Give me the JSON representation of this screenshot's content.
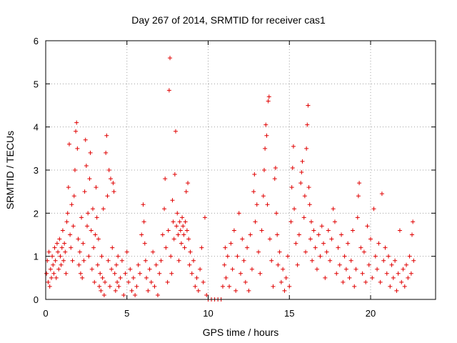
{
  "chart_data": {
    "type": "scatter",
    "title": "Day 267 of 2014, SRMTID for receiver cas1",
    "xlabel": "GPS time / hours",
    "ylabel": "SRMTID / TECUs",
    "xlim": [
      0,
      24
    ],
    "ylim": [
      0,
      6
    ],
    "xticks": [
      0,
      5,
      10,
      15,
      20
    ],
    "yticks": [
      0,
      1,
      2,
      3,
      4,
      5,
      6
    ],
    "xtick_labels": [
      "0",
      "5",
      "10",
      "15",
      "20"
    ],
    "ytick_labels": [
      "0",
      "1",
      "2",
      "3",
      "4",
      "5",
      "6"
    ],
    "grid": true,
    "marker": "+",
    "color": "#e00000",
    "series": [
      {
        "name": "SRMTID",
        "points": [
          [
            0.05,
            0.6
          ],
          [
            0.1,
            0.9
          ],
          [
            0.15,
            0.4
          ],
          [
            0.2,
            1.1
          ],
          [
            0.25,
            0.3
          ],
          [
            0.3,
            0.7
          ],
          [
            0.35,
            0.5
          ],
          [
            0.4,
            1.0
          ],
          [
            0.45,
            0.8
          ],
          [
            0.5,
            0.6
          ],
          [
            0.55,
            1.2
          ],
          [
            0.6,
            0.9
          ],
          [
            0.65,
            0.5
          ],
          [
            0.7,
            1.3
          ],
          [
            0.75,
            1.1
          ],
          [
            0.8,
            0.7
          ],
          [
            0.85,
            1.4
          ],
          [
            0.9,
            1.0
          ],
          [
            0.95,
            0.8
          ],
          [
            1.0,
            1.2
          ],
          [
            1.05,
            1.6
          ],
          [
            1.1,
            0.9
          ],
          [
            1.15,
            1.3
          ],
          [
            1.2,
            1.1
          ],
          [
            1.25,
            0.6
          ],
          [
            1.3,
            1.8
          ],
          [
            1.35,
            2.0
          ],
          [
            1.4,
            2.6
          ],
          [
            1.45,
            3.6
          ],
          [
            1.5,
            1.5
          ],
          [
            1.55,
            1.2
          ],
          [
            1.6,
            2.2
          ],
          [
            1.65,
            0.9
          ],
          [
            1.7,
            1.7
          ],
          [
            1.75,
            2.4
          ],
          [
            1.8,
            3.0
          ],
          [
            1.85,
            3.9
          ],
          [
            1.9,
            4.1
          ],
          [
            1.95,
            3.5
          ],
          [
            2.0,
            1.4
          ],
          [
            2.05,
            0.8
          ],
          [
            2.1,
            1.1
          ],
          [
            2.15,
            0.6
          ],
          [
            2.2,
            1.9
          ],
          [
            2.25,
            0.5
          ],
          [
            2.3,
            1.3
          ],
          [
            2.35,
            0.9
          ],
          [
            2.4,
            2.5
          ],
          [
            2.45,
            3.7
          ],
          [
            2.5,
            3.1
          ],
          [
            2.55,
            1.7
          ],
          [
            2.6,
            2.0
          ],
          [
            2.65,
            1.0
          ],
          [
            2.7,
            2.8
          ],
          [
            2.75,
            3.4
          ],
          [
            2.8,
            1.6
          ],
          [
            2.85,
            0.7
          ],
          [
            2.9,
            2.1
          ],
          [
            2.95,
            1.2
          ],
          [
            3.0,
            0.4
          ],
          [
            3.05,
            1.5
          ],
          [
            3.1,
            2.6
          ],
          [
            3.15,
            1.9
          ],
          [
            3.2,
            0.8
          ],
          [
            3.25,
            1.4
          ],
          [
            3.3,
            0.3
          ],
          [
            3.35,
            0.6
          ],
          [
            3.4,
            0.2
          ],
          [
            3.45,
            1.0
          ],
          [
            3.5,
            0.5
          ],
          [
            3.55,
            2.1
          ],
          [
            3.6,
            0.1
          ],
          [
            3.65,
            0.4
          ],
          [
            3.7,
            3.4
          ],
          [
            3.75,
            3.8
          ],
          [
            3.8,
            2.4
          ],
          [
            3.85,
            0.9
          ],
          [
            3.9,
            3.0
          ],
          [
            3.95,
            0.3
          ],
          [
            4.0,
            2.8
          ],
          [
            4.05,
            0.7
          ],
          [
            4.1,
            1.2
          ],
          [
            4.15,
            2.7
          ],
          [
            4.2,
            2.5
          ],
          [
            4.25,
            0.6
          ],
          [
            4.3,
            0.2
          ],
          [
            4.35,
            0.8
          ],
          [
            4.4,
            0.4
          ],
          [
            4.45,
            1.0
          ],
          [
            4.5,
            0.3
          ],
          [
            4.6,
            0.5
          ],
          [
            4.7,
            0.9
          ],
          [
            4.8,
            0.1
          ],
          [
            4.9,
            0.6
          ],
          [
            5.0,
            1.1
          ],
          [
            5.1,
            0.4
          ],
          [
            5.2,
            0.7
          ],
          [
            5.3,
            0.2
          ],
          [
            5.4,
            0.5
          ],
          [
            5.5,
            0.1
          ],
          [
            5.6,
            0.3
          ],
          [
            5.7,
            0.8
          ],
          [
            5.8,
            0.6
          ],
          [
            5.9,
            1.5
          ],
          [
            6.0,
            2.2
          ],
          [
            6.05,
            1.8
          ],
          [
            6.1,
            1.3
          ],
          [
            6.15,
            0.9
          ],
          [
            6.2,
            0.5
          ],
          [
            6.3,
            0.2
          ],
          [
            6.4,
            0.7
          ],
          [
            6.5,
            0.4
          ],
          [
            6.6,
            1.1
          ],
          [
            6.7,
            0.3
          ],
          [
            6.8,
            0.8
          ],
          [
            6.9,
            0.1
          ],
          [
            7.0,
            0.6
          ],
          [
            7.1,
            0.9
          ],
          [
            7.2,
            1.5
          ],
          [
            7.3,
            2.1
          ],
          [
            7.35,
            2.8
          ],
          [
            7.4,
            1.2
          ],
          [
            7.5,
            0.4
          ],
          [
            7.55,
            1.6
          ],
          [
            7.6,
            4.85
          ],
          [
            7.65,
            5.6
          ],
          [
            7.7,
            1.0
          ],
          [
            7.75,
            0.6
          ],
          [
            7.8,
            2.3
          ],
          [
            7.85,
            1.8
          ],
          [
            7.9,
            1.4
          ],
          [
            7.95,
            2.9
          ],
          [
            8.0,
            3.9
          ],
          [
            8.05,
            1.7
          ],
          [
            8.1,
            2.0
          ],
          [
            8.15,
            1.5
          ],
          [
            8.2,
            0.9
          ],
          [
            8.25,
            1.8
          ],
          [
            8.3,
            1.6
          ],
          [
            8.35,
            1.3
          ],
          [
            8.4,
            1.9
          ],
          [
            8.45,
            1.7
          ],
          [
            8.5,
            1.5
          ],
          [
            8.55,
            1.2
          ],
          [
            8.6,
            1.8
          ],
          [
            8.65,
            2.5
          ],
          [
            8.7,
            1.6
          ],
          [
            8.75,
            2.7
          ],
          [
            8.8,
            1.4
          ],
          [
            8.85,
            0.8
          ],
          [
            8.9,
            1.1
          ],
          [
            9.0,
            0.6
          ],
          [
            9.1,
            0.9
          ],
          [
            9.2,
            0.3
          ],
          [
            9.3,
            0.5
          ],
          [
            9.4,
            0.2
          ],
          [
            9.5,
            0.7
          ],
          [
            9.6,
            1.2
          ],
          [
            9.7,
            0.4
          ],
          [
            9.8,
            1.9
          ],
          [
            9.9,
            0.1
          ],
          [
            10.0,
            0.0
          ],
          [
            10.2,
            0.0
          ],
          [
            10.4,
            0.0
          ],
          [
            10.6,
            0.0
          ],
          [
            10.8,
            0.0
          ],
          [
            10.9,
            0.3
          ],
          [
            11.0,
            0.8
          ],
          [
            11.05,
            1.2
          ],
          [
            11.1,
            0.5
          ],
          [
            11.2,
            1.0
          ],
          [
            11.3,
            0.3
          ],
          [
            11.4,
            1.3
          ],
          [
            11.5,
            0.7
          ],
          [
            11.6,
            1.6
          ],
          [
            11.7,
            0.2
          ],
          [
            11.8,
            1.0
          ],
          [
            11.9,
            2.0
          ],
          [
            12.0,
            0.6
          ],
          [
            12.1,
            1.4
          ],
          [
            12.2,
            0.9
          ],
          [
            12.3,
            0.4
          ],
          [
            12.4,
            1.2
          ],
          [
            12.5,
            0.2
          ],
          [
            12.6,
            1.5
          ],
          [
            12.7,
            0.7
          ],
          [
            12.8,
            2.5
          ],
          [
            12.85,
            2.9
          ],
          [
            12.9,
            1.8
          ],
          [
            13.0,
            2.2
          ],
          [
            13.1,
            1.1
          ],
          [
            13.2,
            0.6
          ],
          [
            13.3,
            1.6
          ],
          [
            13.4,
            2.4
          ],
          [
            13.45,
            3.0
          ],
          [
            13.5,
            3.5
          ],
          [
            13.55,
            4.05
          ],
          [
            13.6,
            3.8
          ],
          [
            13.65,
            2.2
          ],
          [
            13.7,
            4.6
          ],
          [
            13.75,
            4.7
          ],
          [
            13.8,
            1.4
          ],
          [
            13.9,
            0.9
          ],
          [
            14.0,
            0.3
          ],
          [
            14.1,
            2.8
          ],
          [
            14.15,
            3.05
          ],
          [
            14.2,
            2.0
          ],
          [
            14.25,
            1.5
          ],
          [
            14.3,
            0.8
          ],
          [
            14.4,
            1.1
          ],
          [
            14.5,
            0.4
          ],
          [
            14.6,
            0.7
          ],
          [
            14.7,
            0.2
          ],
          [
            14.8,
            0.5
          ],
          [
            14.9,
            1.0
          ],
          [
            15.0,
            0.3
          ],
          [
            15.1,
            1.8
          ],
          [
            15.15,
            2.6
          ],
          [
            15.2,
            3.05
          ],
          [
            15.25,
            3.55
          ],
          [
            15.3,
            2.1
          ],
          [
            15.4,
            1.3
          ],
          [
            15.5,
            0.8
          ],
          [
            15.6,
            1.5
          ],
          [
            15.7,
            2.7
          ],
          [
            15.75,
            2.95
          ],
          [
            15.8,
            3.2
          ],
          [
            15.9,
            1.9
          ],
          [
            15.95,
            2.4
          ],
          [
            16.0,
            1.1
          ],
          [
            16.05,
            3.5
          ],
          [
            16.1,
            4.05
          ],
          [
            16.15,
            4.5
          ],
          [
            16.2,
            2.6
          ],
          [
            16.25,
            2.2
          ],
          [
            16.3,
            1.4
          ],
          [
            16.35,
            1.8
          ],
          [
            16.4,
            0.9
          ],
          [
            16.5,
            1.6
          ],
          [
            16.6,
            1.2
          ],
          [
            16.7,
            0.7
          ],
          [
            16.8,
            1.5
          ],
          [
            16.9,
            1.0
          ],
          [
            17.0,
            1.7
          ],
          [
            17.1,
            1.3
          ],
          [
            17.2,
            0.5
          ],
          [
            17.3,
            1.1
          ],
          [
            17.4,
            1.6
          ],
          [
            17.5,
            0.9
          ],
          [
            17.6,
            1.4
          ],
          [
            17.7,
            2.1
          ],
          [
            17.8,
            1.8
          ],
          [
            17.9,
            0.6
          ],
          [
            18.0,
            1.2
          ],
          [
            18.1,
            0.8
          ],
          [
            18.2,
            1.5
          ],
          [
            18.3,
            0.4
          ],
          [
            18.4,
            1.0
          ],
          [
            18.5,
            0.7
          ],
          [
            18.6,
            1.3
          ],
          [
            18.7,
            0.5
          ],
          [
            18.8,
            0.9
          ],
          [
            18.9,
            1.6
          ],
          [
            19.0,
            0.3
          ],
          [
            19.1,
            0.7
          ],
          [
            19.2,
            1.9
          ],
          [
            19.25,
            2.4
          ],
          [
            19.3,
            2.7
          ],
          [
            19.4,
            1.2
          ],
          [
            19.5,
            0.6
          ],
          [
            19.6,
            1.1
          ],
          [
            19.7,
            0.4
          ],
          [
            19.8,
            1.7
          ],
          [
            19.9,
            0.8
          ],
          [
            20.0,
            1.4
          ],
          [
            20.1,
            0.5
          ],
          [
            20.2,
            2.1
          ],
          [
            20.3,
            1.0
          ],
          [
            20.4,
            0.7
          ],
          [
            20.5,
            1.3
          ],
          [
            20.6,
            0.4
          ],
          [
            20.7,
            2.45
          ],
          [
            20.8,
            0.9
          ],
          [
            20.9,
            1.2
          ],
          [
            21.0,
            0.6
          ],
          [
            21.1,
            1.0
          ],
          [
            21.2,
            0.3
          ],
          [
            21.3,
            0.8
          ],
          [
            21.4,
            0.5
          ],
          [
            21.5,
            0.9
          ],
          [
            21.6,
            0.2
          ],
          [
            21.7,
            0.6
          ],
          [
            21.8,
            1.6
          ],
          [
            21.9,
            0.4
          ],
          [
            22.0,
            0.7
          ],
          [
            22.1,
            0.3
          ],
          [
            22.2,
            0.8
          ],
          [
            22.3,
            0.5
          ],
          [
            22.4,
            1.0
          ],
          [
            22.5,
            0.6
          ],
          [
            22.55,
            1.5
          ],
          [
            22.6,
            1.8
          ],
          [
            22.65,
            0.9
          ]
        ]
      }
    ]
  }
}
